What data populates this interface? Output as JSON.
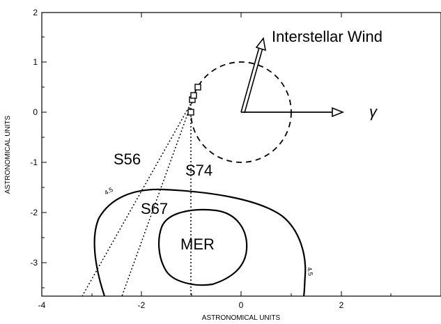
{
  "figure": {
    "x_axis_title": "ASTRONOMICAL UNITS",
    "y_axis_title": "ASTRONOMICAL UNITS",
    "x_ticks": [
      "-4",
      "-2",
      "0",
      "2"
    ],
    "y_ticks": [
      "2",
      "1",
      "0",
      "-1",
      "-2",
      "-3"
    ],
    "x_range": [
      -4,
      4
    ],
    "y_range": [
      -3.6,
      2.05
    ],
    "labels": {
      "wind": "Interstellar Wind",
      "gamma": "γ",
      "s56": "S56",
      "s67": "S67",
      "s74": "S74",
      "mer": "MER",
      "contour_outer_left": "4.5",
      "contour_outer_right": "4.5"
    },
    "orbit_radius_au": 1.0,
    "markers_au": [
      {
        "x": -1.0,
        "y": 0.0
      },
      {
        "x": -0.97,
        "y": 0.25
      },
      {
        "x": -0.95,
        "y": 0.32
      },
      {
        "x": -0.87,
        "y": 0.5
      }
    ],
    "wind_vector_au": {
      "x": 0.38,
      "y": 1.42
    },
    "gamma_vector_au": {
      "x": 2.0,
      "y": 0.0
    }
  }
}
